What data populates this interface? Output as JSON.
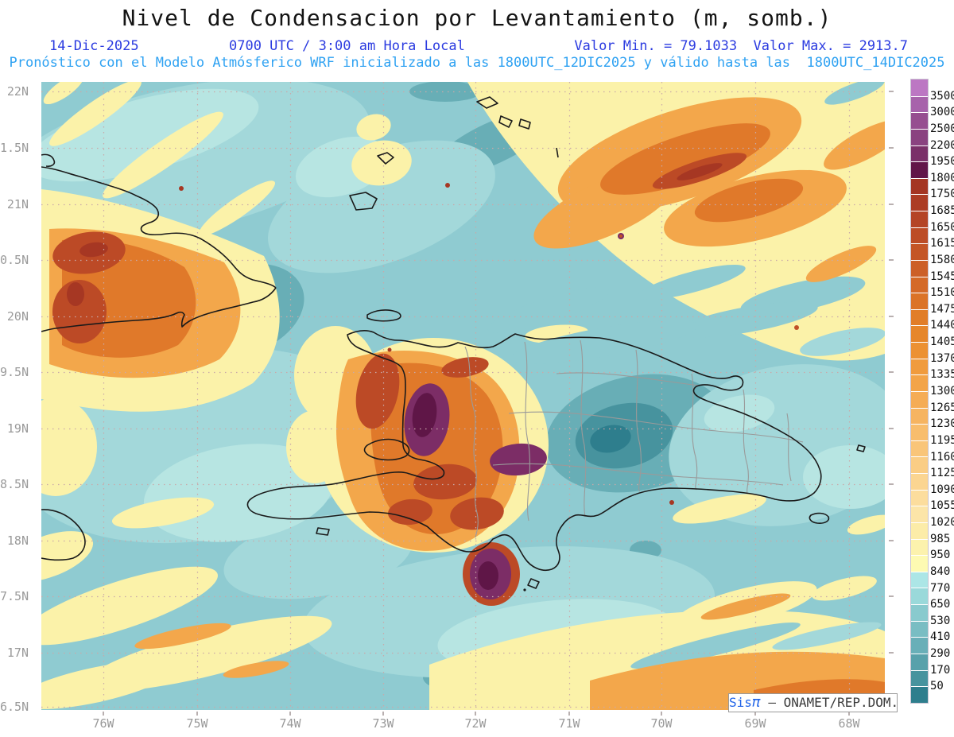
{
  "header": {
    "title": "Nivel de Condensacion por Levantamiento (m, somb.)",
    "date": "14-Dic-2025",
    "time": "0700 UTC / 3:00 am Hora Local",
    "stats": "Valor Min. = 79.1033  Valor Max. = 2913.7",
    "model_line": "Pronóstico con el Modelo Atmósferico WRF inicializado a las 1800UTC_12DIC2025 y válido hasta las  1800UTC_14DIC2025"
  },
  "watermark": {
    "sis": "Sis",
    "pi": "π",
    "rest": " – ONAMET/REP.DOM."
  },
  "axes": {
    "lat_labels": [
      "22N",
      "1.5N",
      "21N",
      "0.5N",
      "20N",
      "9.5N",
      "19N",
      "8.5N",
      "18N",
      "7.5N",
      "17N",
      "6.5N"
    ],
    "lon_labels": [
      "76W",
      "75W",
      "74W",
      "73W",
      "72W",
      "71W",
      "70W",
      "69W",
      "68W"
    ]
  },
  "chart_data": {
    "type": "heatmap",
    "title": "Nivel de Condensacion por Levantamiento (m, somb.)",
    "units": "m",
    "stat_min": 79.1033,
    "stat_max": 2913.7,
    "valid_date": "14-Dic-2025",
    "valid_time": "0700 UTC / 3:00 am Hora Local",
    "model": "WRF",
    "init_time": "1800UTC_12DIC2025",
    "valid_until": "1800UTC_14DIC2025",
    "x_ticks": [
      "76W",
      "75W",
      "74W",
      "73W",
      "72W",
      "71W",
      "70W",
      "69W",
      "68W"
    ],
    "y_ticks": [
      "22N",
      "1.5N",
      "21N",
      "0.5N",
      "20N",
      "9.5N",
      "19N",
      "8.5N",
      "18N",
      "7.5N",
      "17N",
      "6.5N"
    ],
    "legend_position": "right",
    "grid": "dotted",
    "colorbar_levels": [
      3500,
      3000,
      2500,
      2200,
      1950,
      1800,
      1750,
      1685,
      1650,
      1615,
      1580,
      1545,
      1510,
      1475,
      1440,
      1405,
      1370,
      1335,
      1300,
      1265,
      1230,
      1195,
      1160,
      1125,
      1090,
      1055,
      1020,
      985,
      950,
      840,
      770,
      650,
      530,
      410,
      290,
      170,
      50
    ],
    "colorbar_colors": [
      "#BC77C3",
      "#A763AB",
      "#964E90",
      "#8A4280",
      "#7A3069",
      "#611549",
      "#A43524",
      "#AC3C25",
      "#B44426",
      "#BC4C27",
      "#C45527",
      "#CC5F28",
      "#D46928",
      "#DB7328",
      "#E17D28",
      "#E6862B",
      "#EC9133",
      "#F09B3E",
      "#F3A449",
      "#F5AC55",
      "#F6B461",
      "#F8BD6D",
      "#F9C579",
      "#FACD85",
      "#FBD591",
      "#FCDD9D",
      "#FCE5A8",
      "#FCECA8",
      "#FCF2AD",
      "#FDFAB2",
      "#ACE6E6",
      "#9AD9DA",
      "#89CACE",
      "#79BDC3",
      "#69AFB8",
      "#58A1AB",
      "#47939E",
      "#2E7E8D"
    ],
    "field_description": "Shaded lifting condensation level over Hispaniola, eastern Cuba, Jamaica, Turks & Caicos and surrounding Caribbean; high values (orange to purple, >1400 m) over interior Haiti, eastern Cuba and a broad NE Atlantic band; low values (cyan, <840 m) over most ocean areas and eastern Dominican Republic"
  }
}
